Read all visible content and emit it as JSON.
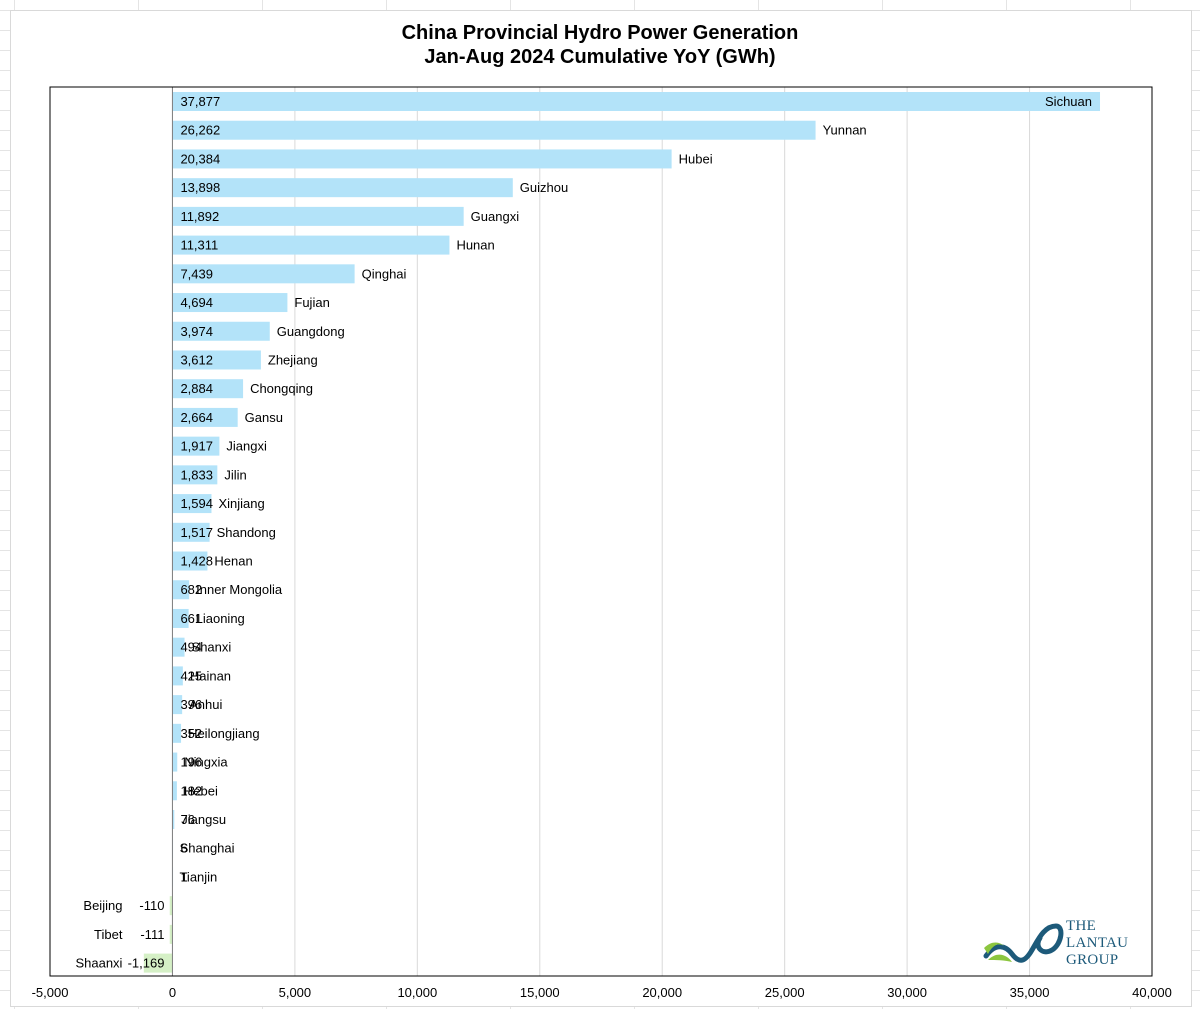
{
  "chart_data": {
    "type": "bar",
    "orientation": "horizontal",
    "title": "China Provincial Hydro Power Generation",
    "subtitle": "Jan-Aug 2024 Cumulative YoY (GWh)",
    "xlim": [
      -5000,
      40000
    ],
    "x_ticks": [
      -5000,
      0,
      5000,
      10000,
      15000,
      20000,
      25000,
      30000,
      35000,
      40000
    ],
    "x_tick_labels": [
      "-5,000",
      "0",
      "5,000",
      "10,000",
      "15,000",
      "20,000",
      "25,000",
      "30,000",
      "35,000",
      "40,000"
    ],
    "grid": "vertical",
    "categories": [
      "Sichuan",
      "Yunnan",
      "Hubei",
      "Guizhou",
      "Guangxi",
      "Hunan",
      "Qinghai",
      "Fujian",
      "Guangdong",
      "Zhejiang",
      "Chongqing",
      "Gansu",
      "Jiangxi",
      "Jilin",
      "Xinjiang",
      "Shandong",
      "Henan",
      "Inner Mongolia",
      "Liaoning",
      "Shanxi",
      "Hainan",
      "Anhui",
      "Heilongjiang",
      "Ningxia",
      "Hebei",
      "Jiangsu",
      "Shanghai",
      "Tianjin",
      "Beijing",
      "Tibet",
      "Shaanxi"
    ],
    "values": [
      37877,
      26262,
      20384,
      13898,
      11892,
      11311,
      7439,
      4694,
      3974,
      3612,
      2884,
      2664,
      1917,
      1833,
      1594,
      1517,
      1428,
      682,
      661,
      494,
      425,
      396,
      352,
      196,
      182,
      76,
      6,
      1,
      -110,
      -111,
      -1169
    ],
    "value_labels": [
      "37,877",
      "26,262",
      "20,384",
      "13,898",
      "11,892",
      "11,311",
      "7,439",
      "4,694",
      "3,974",
      "3,612",
      "2,884",
      "2,664",
      "1,917",
      "1,833",
      "1,594",
      "1,517",
      "1,428",
      "682",
      "661",
      "494",
      "425",
      "396",
      "352",
      "196",
      "182",
      "76",
      "6",
      "1",
      "-110",
      "-111",
      "-1,169"
    ]
  },
  "colors": {
    "positive_bar": "#b3e3f9",
    "negative_bar": "#d5f0c6",
    "gridline": "#d9d9d9",
    "plot_border": "#000000"
  },
  "logo": {
    "lines": [
      "THE",
      "LANTAU",
      "GROUP"
    ],
    "icon": "wave-loop-icon",
    "colors": [
      "#1d5a7a",
      "#8cc63f"
    ]
  }
}
